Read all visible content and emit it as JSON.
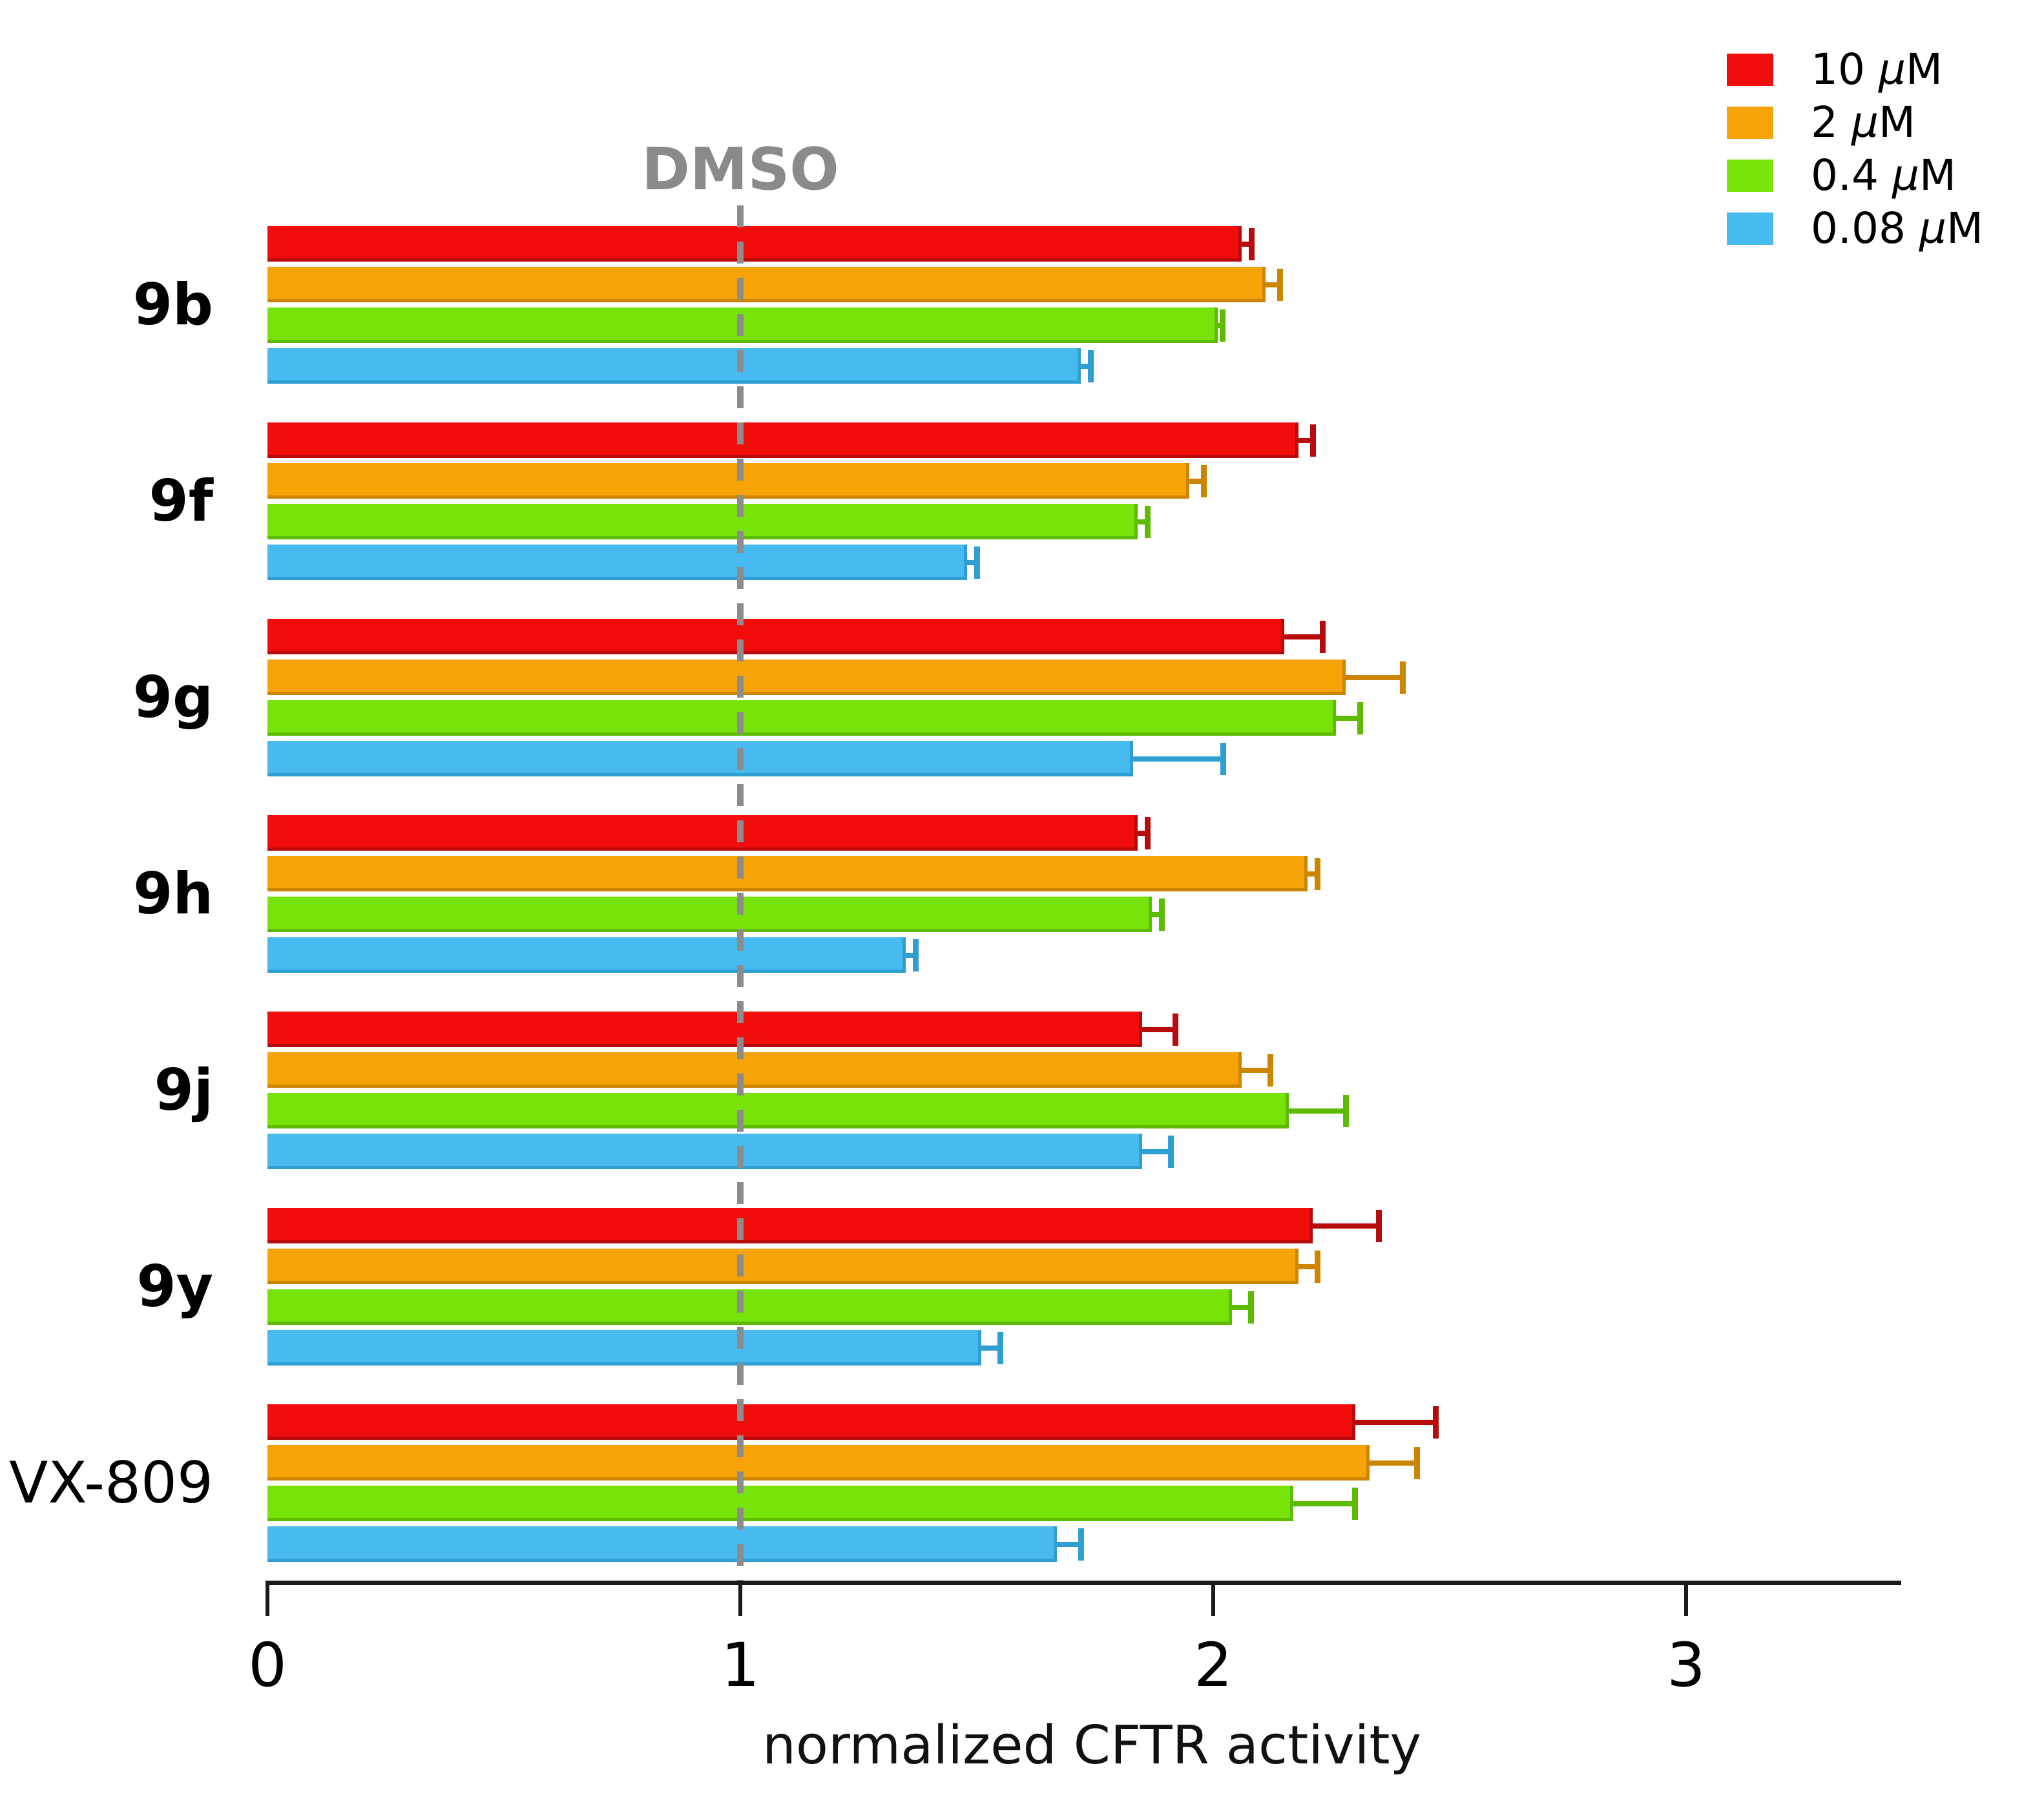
{
  "chart_data": {
    "type": "bar",
    "orientation": "horizontal",
    "xlabel": "normalized CFTR activity",
    "x_ticks": [
      "0",
      "1",
      "2",
      "3"
    ],
    "xlim": [
      0,
      3.46
    ],
    "grid": false,
    "legend_position": "top-right",
    "reference_line": {
      "label": "DMSO",
      "x": 1,
      "color": "#8c8c8c",
      "style": "dashed"
    },
    "categories": [
      {
        "label": "9b",
        "bold": true
      },
      {
        "label": "9f",
        "bold": true
      },
      {
        "label": "9g",
        "bold": true
      },
      {
        "label": "9h",
        "bold": true
      },
      {
        "label": "9j",
        "bold": true
      },
      {
        "label": "9y",
        "bold": true
      },
      {
        "label": "VX-809",
        "bold": false
      }
    ],
    "series": [
      {
        "name": "10 µM",
        "amount": "10",
        "color": "#f20d0d",
        "edge_color": "#b80b0b",
        "values": [
          2.06,
          2.18,
          2.15,
          1.84,
          1.85,
          2.21,
          2.3
        ],
        "errors": [
          0.02,
          0.03,
          0.08,
          0.02,
          0.07,
          0.14,
          0.17
        ]
      },
      {
        "name": "2 µM",
        "amount": "2",
        "color": "#f6a307",
        "edge_color": "#cc8500",
        "values": [
          2.11,
          1.95,
          2.28,
          2.2,
          2.06,
          2.18,
          2.33
        ],
        "errors": [
          0.03,
          0.03,
          0.12,
          0.02,
          0.06,
          0.04,
          0.1
        ]
      },
      {
        "name": "0.4 µM",
        "amount": "0.4",
        "color": "#77e309",
        "edge_color": "#5dbb02",
        "values": [
          2.01,
          1.84,
          2.26,
          1.87,
          2.16,
          2.04,
          2.17
        ],
        "errors": [
          0.01,
          0.02,
          0.05,
          0.02,
          0.12,
          0.04,
          0.13
        ]
      },
      {
        "name": "0.08 µM",
        "amount": "0.08",
        "color": "#47bbf0",
        "edge_color": "#2f9ed2",
        "values": [
          1.72,
          1.48,
          1.83,
          1.35,
          1.85,
          1.51,
          1.67
        ],
        "errors": [
          0.02,
          0.02,
          0.19,
          0.02,
          0.06,
          0.04,
          0.05
        ]
      }
    ],
    "legend_unit_mu": "µ",
    "legend_unit_m": "M"
  }
}
